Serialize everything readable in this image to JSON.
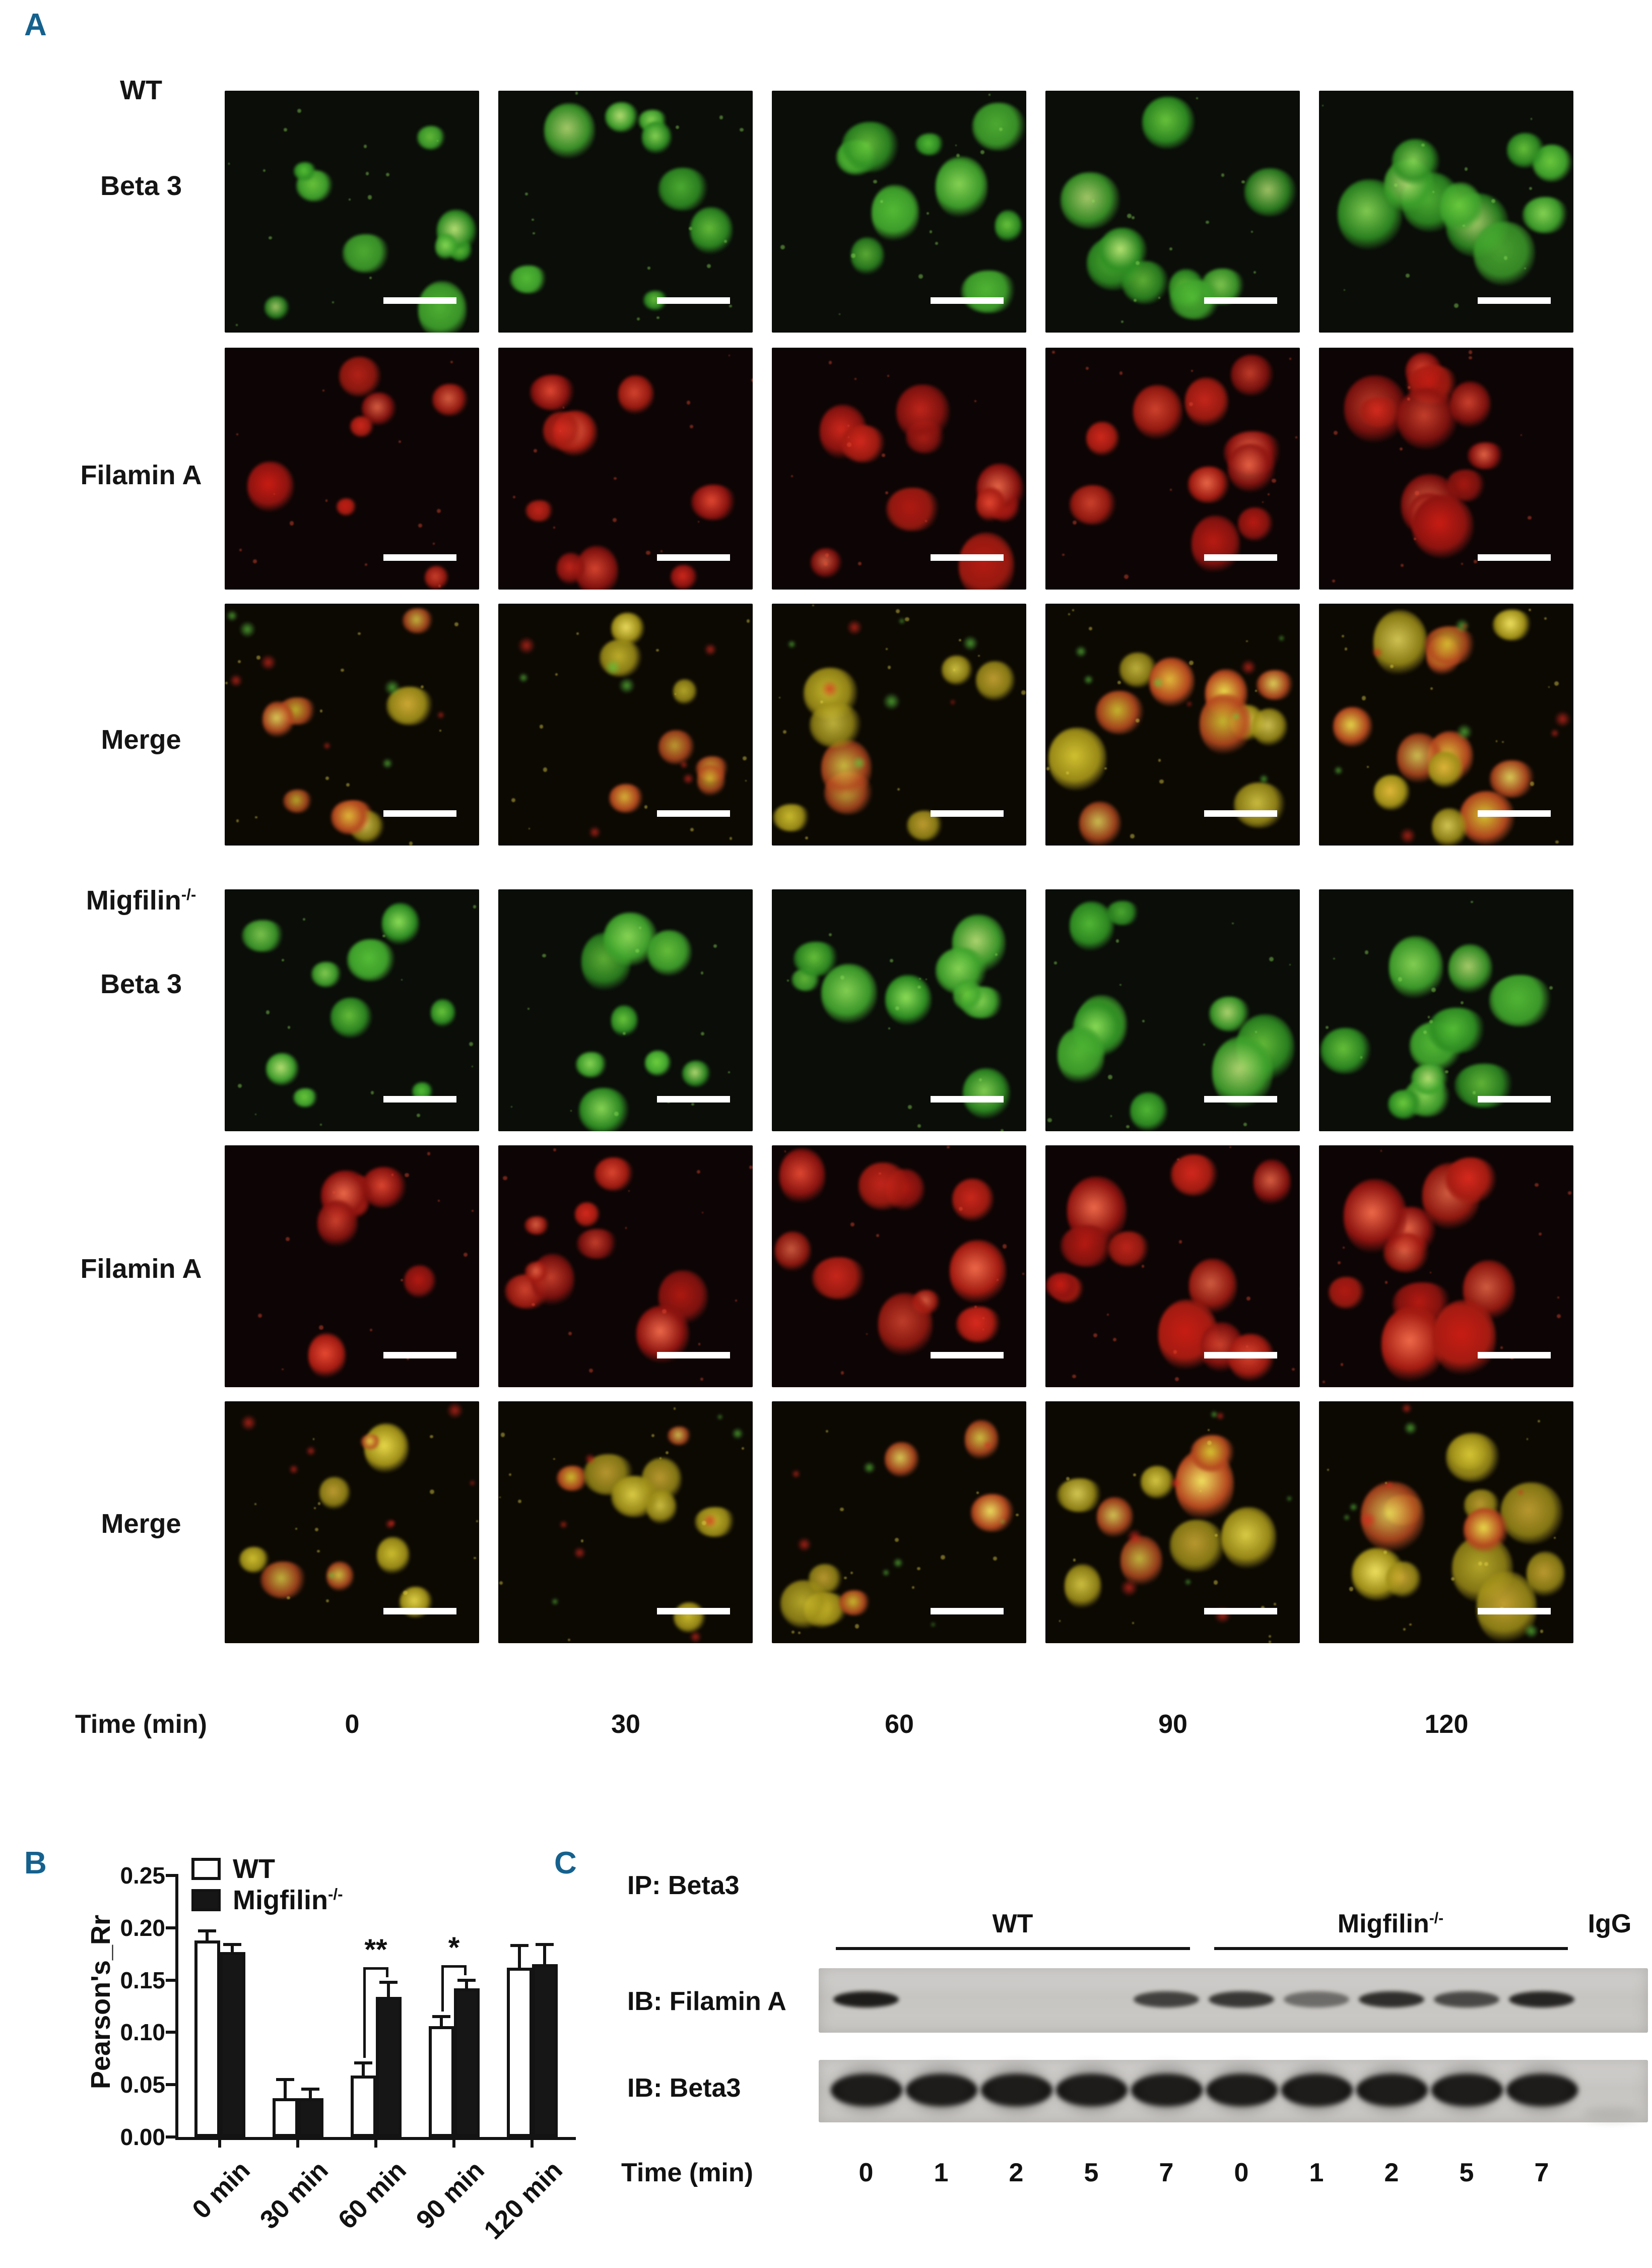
{
  "colors": {
    "accent_blue": "#15618e",
    "ink": "#131313",
    "blot_background": "#c9c7c4"
  },
  "panel_a": {
    "label": "A",
    "group1": {
      "name": "WT",
      "sup": "",
      "rows": [
        "Beta 3",
        "Filamin A",
        "Merge"
      ]
    },
    "group2": {
      "name": "Migfilin",
      "sup": "-/-",
      "rows": [
        "Beta 3",
        "Filamin A",
        "Merge"
      ]
    },
    "channels": [
      "green",
      "red",
      "merge",
      "green",
      "red",
      "merge"
    ],
    "time_label": "Time (min)",
    "time_points": [
      "0",
      "30",
      "60",
      "90",
      "120"
    ]
  },
  "panel_b": {
    "label": "B"
  },
  "chart_data": {
    "type": "bar",
    "title": "",
    "categories": [
      "0 min",
      "30 min",
      "60 min",
      "90 min",
      "120 min"
    ],
    "series": [
      {
        "name": "WT",
        "sup": "",
        "fill": "#ffffff",
        "values": [
          0.188,
          0.037,
          0.059,
          0.106,
          0.162
        ],
        "errors": [
          0.009,
          0.018,
          0.012,
          0.009,
          0.021
        ]
      },
      {
        "name": "Migfilin",
        "sup": "-/-",
        "fill": "#161616",
        "values": [
          0.177,
          0.037,
          0.134,
          0.142,
          0.165
        ],
        "errors": [
          0.007,
          0.009,
          0.014,
          0.008,
          0.019
        ]
      }
    ],
    "ylabel": "Pearson's_Rr",
    "xlabel": "",
    "ylim": [
      0,
      0.25
    ],
    "yticks": [
      "0.00",
      "0.05",
      "0.10",
      "0.15",
      "0.20",
      "0.25"
    ],
    "grid": false,
    "legend_position": "top-left",
    "significance": [
      {
        "category_index": 2,
        "category": "60 min",
        "label": "**"
      },
      {
        "category_index": 3,
        "category": "90 min",
        "label": "*"
      }
    ]
  },
  "panel_c": {
    "label": "C",
    "ip_label": "IP: Beta3",
    "group1": {
      "name": "WT"
    },
    "group2": {
      "name": "Migfilin",
      "sup": "-/-"
    },
    "igg_label": "IgG",
    "blot1": {
      "label": "IB: Filamin A",
      "bands": [
        0.95,
        0,
        0,
        0,
        0.75,
        0.8,
        0.5,
        0.85,
        0.7,
        0.9
      ]
    },
    "blot2": {
      "label": "IB: Beta3",
      "bands": [
        1,
        1,
        1,
        1,
        1,
        1,
        1,
        1,
        1,
        1
      ]
    },
    "time_label": "Time (min)",
    "time_values": [
      "0",
      "1",
      "2",
      "5",
      "7",
      "0",
      "1",
      "2",
      "5",
      "7"
    ]
  }
}
